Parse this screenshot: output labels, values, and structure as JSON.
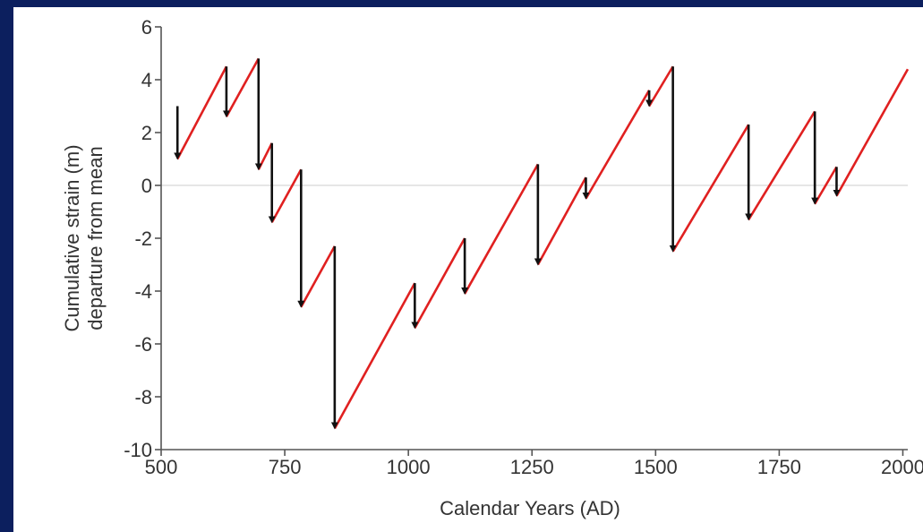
{
  "colors": {
    "background_border": "#0c1f5e",
    "plot_background": "#ffffff",
    "accumulation_line": "#e02020",
    "rupture_line": "#111111",
    "zero_line": "#e6e6e6",
    "axis": "#555555"
  },
  "chart_data": {
    "type": "line",
    "xlabel": "Calendar Years (AD)",
    "ylabel_lines": [
      "Cumulative strain (m)",
      "departure from mean"
    ],
    "xlim": [
      500,
      2010
    ],
    "ylim": [
      -10,
      6
    ],
    "xticks": [
      500,
      750,
      1000,
      1250,
      1500,
      1750,
      2000
    ],
    "yticks": [
      6,
      4,
      2,
      0,
      -2,
      -4,
      -6,
      -8,
      -10
    ],
    "grid": false,
    "reference_line_y": 0,
    "accumulation_segments": [
      {
        "x": [
          533,
          632
        ],
        "y": [
          1.0,
          4.5
        ]
      },
      {
        "x": [
          632,
          697
        ],
        "y": [
          2.6,
          4.8
        ]
      },
      {
        "x": [
          697,
          724
        ],
        "y": [
          0.6,
          1.6
        ]
      },
      {
        "x": [
          724,
          783
        ],
        "y": [
          -1.4,
          0.6
        ]
      },
      {
        "x": [
          783,
          851
        ],
        "y": [
          -4.6,
          -2.3
        ]
      },
      {
        "x": [
          851,
          1013
        ],
        "y": [
          -9.2,
          -3.7
        ]
      },
      {
        "x": [
          1013,
          1114
        ],
        "y": [
          -5.4,
          -2.0
        ]
      },
      {
        "x": [
          1114,
          1262
        ],
        "y": [
          -4.1,
          0.8
        ]
      },
      {
        "x": [
          1262,
          1359
        ],
        "y": [
          -3.0,
          0.3
        ]
      },
      {
        "x": [
          1359,
          1487
        ],
        "y": [
          -0.5,
          3.6
        ]
      },
      {
        "x": [
          1487,
          1535
        ],
        "y": [
          3.0,
          4.5
        ]
      },
      {
        "x": [
          1535,
          1688
        ],
        "y": [
          -2.5,
          2.3
        ]
      },
      {
        "x": [
          1688,
          1822
        ],
        "y": [
          -1.3,
          2.8
        ]
      },
      {
        "x": [
          1822,
          1866
        ],
        "y": [
          -0.7,
          0.7
        ]
      },
      {
        "x": [
          1866,
          2010
        ],
        "y": [
          -0.4,
          4.4
        ]
      }
    ],
    "rupture_events": [
      {
        "x": 533,
        "from": 3.0,
        "to": 1.0
      },
      {
        "x": 632,
        "from": 4.5,
        "to": 2.6
      },
      {
        "x": 697,
        "from": 4.8,
        "to": 0.6
      },
      {
        "x": 724,
        "from": 1.6,
        "to": -1.4
      },
      {
        "x": 783,
        "from": 0.6,
        "to": -4.6
      },
      {
        "x": 851,
        "from": -2.3,
        "to": -9.2
      },
      {
        "x": 1013,
        "from": -3.7,
        "to": -5.4
      },
      {
        "x": 1114,
        "from": -2.0,
        "to": -4.1
      },
      {
        "x": 1262,
        "from": 0.8,
        "to": -3.0
      },
      {
        "x": 1359,
        "from": 0.3,
        "to": -0.5
      },
      {
        "x": 1487,
        "from": 3.6,
        "to": 3.0
      },
      {
        "x": 1535,
        "from": 4.5,
        "to": -2.5
      },
      {
        "x": 1688,
        "from": 2.3,
        "to": -1.3
      },
      {
        "x": 1822,
        "from": 2.8,
        "to": -0.7
      },
      {
        "x": 1866,
        "from": 0.7,
        "to": -0.4
      }
    ]
  }
}
